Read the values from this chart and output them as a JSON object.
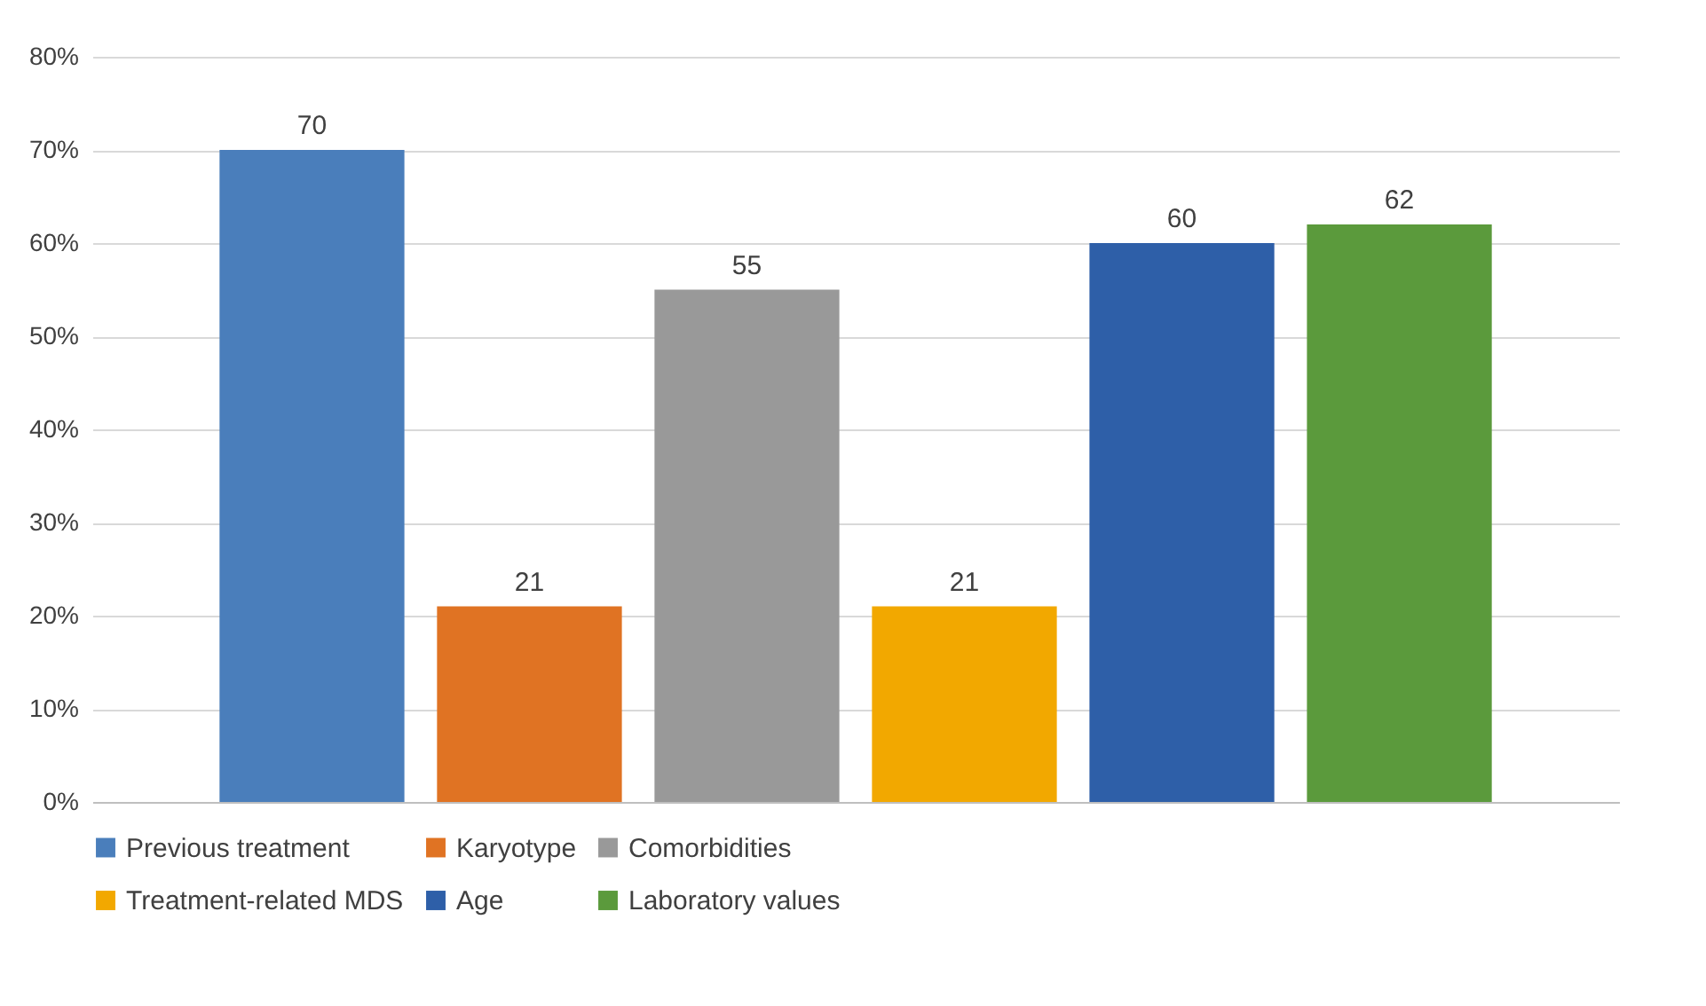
{
  "chart_data": {
    "type": "bar",
    "categories": [
      null
    ],
    "series": [
      {
        "name": "Previous treatment",
        "color": "#4a7ebb",
        "values": [
          70
        ]
      },
      {
        "name": "Karyotype",
        "color": "#e07323",
        "values": [
          21
        ]
      },
      {
        "name": "Comorbidities",
        "color": "#999999",
        "values": [
          55
        ]
      },
      {
        "name": "Treatment-related MDS",
        "color": "#f2a800",
        "values": [
          21
        ]
      },
      {
        "name": "Age",
        "color": "#2e5fa8",
        "values": [
          60
        ]
      },
      {
        "name": "Laboratory values",
        "color": "#5b9a3c",
        "values": [
          62
        ]
      }
    ],
    "ylim": [
      0,
      80
    ],
    "yticks": [
      {
        "value": 0,
        "label": "0%"
      },
      {
        "value": 10,
        "label": "10%"
      },
      {
        "value": 20,
        "label": "20%"
      },
      {
        "value": 30,
        "label": "30%"
      },
      {
        "value": 40,
        "label": "40%"
      },
      {
        "value": 50,
        "label": "50%"
      },
      {
        "value": 60,
        "label": "60%"
      },
      {
        "value": 70,
        "label": "70%"
      },
      {
        "value": 80,
        "label": "80%"
      }
    ],
    "grid": true,
    "legend": "bottom",
    "data_labels": true
  }
}
